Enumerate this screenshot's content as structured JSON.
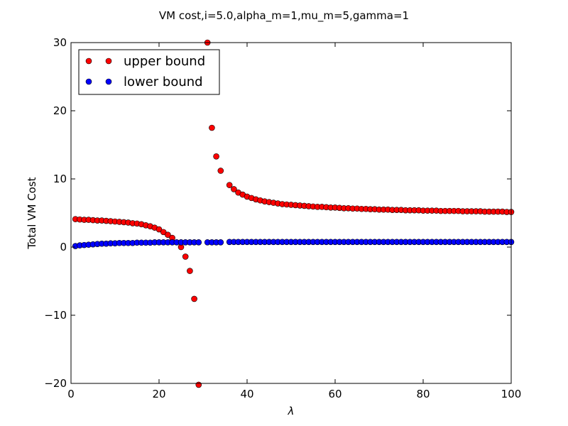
{
  "chart_data": {
    "type": "scatter",
    "title": "VM cost,i=5.0,alpha_m=1,mu_m=5,gamma=1",
    "xlabel": "λ",
    "ylabel": "Total VM Cost",
    "xlim": [
      0,
      100
    ],
    "ylim": [
      -20,
      30
    ],
    "x_ticks": [
      "0",
      "20",
      "40",
      "60",
      "80",
      "100"
    ],
    "y_ticks": [
      "−20",
      "−10",
      "0",
      "10",
      "20",
      "30"
    ],
    "x_tick_values": [
      0,
      20,
      40,
      60,
      80,
      100
    ],
    "y_tick_values": [
      -20,
      -10,
      0,
      10,
      20,
      30
    ],
    "grid": false,
    "legend_position": "top-left",
    "series": [
      {
        "name": "upper bound",
        "color": "#ff0000",
        "points": [
          [
            1,
            4.1
          ],
          [
            2,
            4.05
          ],
          [
            3,
            4.0
          ],
          [
            4,
            4.0
          ],
          [
            5,
            3.95
          ],
          [
            6,
            3.9
          ],
          [
            7,
            3.9
          ],
          [
            8,
            3.85
          ],
          [
            9,
            3.8
          ],
          [
            10,
            3.75
          ],
          [
            11,
            3.7
          ],
          [
            12,
            3.65
          ],
          [
            13,
            3.6
          ],
          [
            14,
            3.5
          ],
          [
            15,
            3.45
          ],
          [
            16,
            3.35
          ],
          [
            17,
            3.2
          ],
          [
            18,
            3.05
          ],
          [
            19,
            2.85
          ],
          [
            20,
            2.6
          ],
          [
            21,
            2.2
          ],
          [
            22,
            1.8
          ],
          [
            23,
            1.35
          ],
          [
            25,
            0.0
          ],
          [
            26,
            -1.4
          ],
          [
            27,
            -3.5
          ],
          [
            28,
            -7.6
          ],
          [
            29,
            -20.2
          ],
          [
            31,
            30.0
          ],
          [
            32,
            17.5
          ],
          [
            33,
            13.3
          ],
          [
            34,
            11.2
          ],
          [
            36,
            9.1
          ],
          [
            37,
            8.5
          ],
          [
            38,
            8.0
          ],
          [
            39,
            7.7
          ],
          [
            40,
            7.4
          ],
          [
            41,
            7.2
          ],
          [
            42,
            7.0
          ],
          [
            43,
            6.85
          ],
          [
            44,
            6.7
          ],
          [
            45,
            6.6
          ],
          [
            46,
            6.5
          ],
          [
            47,
            6.4
          ],
          [
            48,
            6.3
          ],
          [
            49,
            6.25
          ],
          [
            50,
            6.2
          ],
          [
            51,
            6.15
          ],
          [
            52,
            6.1
          ],
          [
            53,
            6.05
          ],
          [
            54,
            6.0
          ],
          [
            55,
            5.95
          ],
          [
            56,
            5.9
          ],
          [
            57,
            5.9
          ],
          [
            58,
            5.85
          ],
          [
            59,
            5.8
          ],
          [
            60,
            5.8
          ],
          [
            61,
            5.75
          ],
          [
            62,
            5.7
          ],
          [
            63,
            5.7
          ],
          [
            64,
            5.65
          ],
          [
            65,
            5.65
          ],
          [
            66,
            5.6
          ],
          [
            67,
            5.6
          ],
          [
            68,
            5.55
          ],
          [
            69,
            5.55
          ],
          [
            70,
            5.5
          ],
          [
            71,
            5.5
          ],
          [
            72,
            5.5
          ],
          [
            73,
            5.45
          ],
          [
            74,
            5.45
          ],
          [
            75,
            5.45
          ],
          [
            76,
            5.4
          ],
          [
            77,
            5.4
          ],
          [
            78,
            5.4
          ],
          [
            79,
            5.4
          ],
          [
            80,
            5.35
          ],
          [
            81,
            5.35
          ],
          [
            82,
            5.35
          ],
          [
            83,
            5.35
          ],
          [
            84,
            5.3
          ],
          [
            85,
            5.3
          ],
          [
            86,
            5.3
          ],
          [
            87,
            5.3
          ],
          [
            88,
            5.3
          ],
          [
            89,
            5.25
          ],
          [
            90,
            5.25
          ],
          [
            91,
            5.25
          ],
          [
            92,
            5.25
          ],
          [
            93,
            5.25
          ],
          [
            94,
            5.2
          ],
          [
            95,
            5.2
          ],
          [
            96,
            5.2
          ],
          [
            97,
            5.2
          ],
          [
            98,
            5.2
          ],
          [
            99,
            5.15
          ],
          [
            100,
            5.15
          ]
        ]
      },
      {
        "name": "lower bound",
        "color": "#0000ff",
        "points": [
          [
            1,
            0.15
          ],
          [
            2,
            0.25
          ],
          [
            3,
            0.3
          ],
          [
            4,
            0.35
          ],
          [
            5,
            0.4
          ],
          [
            6,
            0.45
          ],
          [
            7,
            0.5
          ],
          [
            8,
            0.5
          ],
          [
            9,
            0.55
          ],
          [
            10,
            0.55
          ],
          [
            11,
            0.6
          ],
          [
            12,
            0.6
          ],
          [
            13,
            0.6
          ],
          [
            14,
            0.6
          ],
          [
            15,
            0.65
          ],
          [
            16,
            0.65
          ],
          [
            17,
            0.65
          ],
          [
            18,
            0.65
          ],
          [
            19,
            0.7
          ],
          [
            20,
            0.7
          ],
          [
            21,
            0.7
          ],
          [
            22,
            0.7
          ],
          [
            23,
            0.7
          ],
          [
            24,
            0.7
          ],
          [
            25,
            0.7
          ],
          [
            26,
            0.7
          ],
          [
            27,
            0.7
          ],
          [
            28,
            0.7
          ],
          [
            29,
            0.7
          ],
          [
            31,
            0.7
          ],
          [
            32,
            0.7
          ],
          [
            33,
            0.7
          ],
          [
            34,
            0.7
          ],
          [
            36,
            0.75
          ],
          [
            37,
            0.75
          ],
          [
            38,
            0.75
          ],
          [
            39,
            0.75
          ],
          [
            40,
            0.75
          ],
          [
            41,
            0.75
          ],
          [
            42,
            0.75
          ],
          [
            43,
            0.75
          ],
          [
            44,
            0.75
          ],
          [
            45,
            0.75
          ],
          [
            46,
            0.75
          ],
          [
            47,
            0.75
          ],
          [
            48,
            0.75
          ],
          [
            49,
            0.75
          ],
          [
            50,
            0.75
          ],
          [
            51,
            0.75
          ],
          [
            52,
            0.75
          ],
          [
            53,
            0.75
          ],
          [
            54,
            0.75
          ],
          [
            55,
            0.75
          ],
          [
            56,
            0.75
          ],
          [
            57,
            0.75
          ],
          [
            58,
            0.75
          ],
          [
            59,
            0.75
          ],
          [
            60,
            0.75
          ],
          [
            61,
            0.75
          ],
          [
            62,
            0.75
          ],
          [
            63,
            0.75
          ],
          [
            64,
            0.75
          ],
          [
            65,
            0.75
          ],
          [
            66,
            0.75
          ],
          [
            67,
            0.75
          ],
          [
            68,
            0.75
          ],
          [
            69,
            0.75
          ],
          [
            70,
            0.75
          ],
          [
            71,
            0.75
          ],
          [
            72,
            0.75
          ],
          [
            73,
            0.75
          ],
          [
            74,
            0.75
          ],
          [
            75,
            0.75
          ],
          [
            76,
            0.75
          ],
          [
            77,
            0.75
          ],
          [
            78,
            0.75
          ],
          [
            79,
            0.75
          ],
          [
            80,
            0.75
          ],
          [
            81,
            0.75
          ],
          [
            82,
            0.75
          ],
          [
            83,
            0.75
          ],
          [
            84,
            0.75
          ],
          [
            85,
            0.75
          ],
          [
            86,
            0.75
          ],
          [
            87,
            0.75
          ],
          [
            88,
            0.75
          ],
          [
            89,
            0.75
          ],
          [
            90,
            0.75
          ],
          [
            91,
            0.75
          ],
          [
            92,
            0.75
          ],
          [
            93,
            0.75
          ],
          [
            94,
            0.75
          ],
          [
            95,
            0.75
          ],
          [
            96,
            0.75
          ],
          [
            97,
            0.75
          ],
          [
            98,
            0.75
          ],
          [
            99,
            0.75
          ],
          [
            100,
            0.75
          ]
        ]
      }
    ]
  }
}
